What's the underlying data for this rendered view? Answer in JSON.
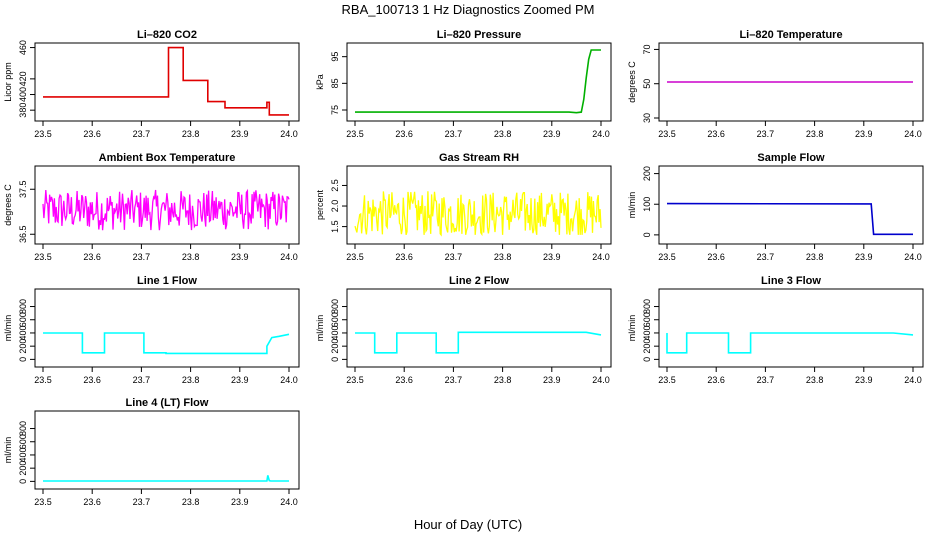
{
  "title": "RBA_100713  1 Hz Diagnostics Zoomed PM",
  "xlabel": "Hour of Day (UTC)",
  "chart_data": [
    {
      "type": "line",
      "title": "Li–820 CO2",
      "ylabel": "Licor ppm",
      "color": "#e00000",
      "xlim": [
        23.5,
        24.0
      ],
      "xticks": [
        "23.5",
        "23.6",
        "23.7",
        "23.8",
        "23.9",
        "24.0"
      ],
      "ylim": [
        370,
        462
      ],
      "yticks": [
        "380",
        "400",
        "420",
        "460"
      ],
      "ytickvals": [
        380,
        400,
        420,
        460
      ],
      "series": [
        {
          "x": [
            23.5,
            23.755,
            23.755,
            23.785,
            23.785,
            23.835,
            23.835,
            23.87,
            23.87,
            23.955,
            23.955,
            23.96,
            23.96,
            24.0
          ],
          "values": [
            397,
            397,
            460,
            460,
            418,
            418,
            391,
            391,
            383,
            383,
            390,
            390,
            374,
            374
          ]
        }
      ]
    },
    {
      "type": "line",
      "title": "Li–820 Pressure",
      "ylabel": "kPa",
      "color": "#00b000",
      "xlim": [
        23.5,
        24.0
      ],
      "xticks": [
        "23.5",
        "23.6",
        "23.7",
        "23.8",
        "23.9",
        "24.0"
      ],
      "ylim": [
        72,
        99
      ],
      "yticks": [
        "75",
        "85",
        "95"
      ],
      "ytickvals": [
        75,
        85,
        95
      ],
      "series": [
        {
          "x": [
            23.5,
            23.935,
            23.95,
            23.96,
            23.965,
            23.97,
            23.975,
            23.98,
            24.0
          ],
          "values": [
            74.2,
            74.2,
            74.0,
            74.2,
            79,
            87,
            94,
            97.5,
            97.5
          ]
        }
      ]
    },
    {
      "type": "line",
      "title": "Li–820 Temperature",
      "ylabel": "degrees C",
      "color": "#cc00cc",
      "xlim": [
        23.5,
        24.0
      ],
      "xticks": [
        "23.5",
        "23.6",
        "23.7",
        "23.8",
        "23.9",
        "24.0"
      ],
      "ylim": [
        30,
        72
      ],
      "yticks": [
        "30",
        "50",
        "70"
      ],
      "ytickvals": [
        30,
        50,
        70
      ],
      "series": [
        {
          "x": [
            23.5,
            24.0
          ],
          "values": [
            51,
            51
          ]
        }
      ]
    },
    {
      "type": "line",
      "title": "Ambient Box Temperature",
      "ylabel": "degrees C",
      "color": "#ff00ff",
      "xlim": [
        23.5,
        24.0
      ],
      "xticks": [
        "23.5",
        "23.6",
        "23.7",
        "23.8",
        "23.9",
        "24.0"
      ],
      "ylim": [
        36.35,
        37.95
      ],
      "yticks": [
        "36.5",
        "37.5"
      ],
      "ytickvals": [
        36.5,
        37.5
      ],
      "noise": {
        "base": 36.9,
        "amp": 0.45,
        "min": 36.45,
        "max": 37.9
      },
      "series": []
    },
    {
      "type": "line",
      "title": "Gas Stream RH",
      "ylabel": "percent",
      "color": "#ffff00",
      "xlim": [
        23.5,
        24.0
      ],
      "xticks": [
        "23.5",
        "23.6",
        "23.7",
        "23.8",
        "23.9",
        "24.0"
      ],
      "ylim": [
        1.15,
        2.9
      ],
      "yticks": [
        "1.5",
        "2.0",
        "2.5"
      ],
      "ytickvals": [
        1.5,
        2.0,
        2.5
      ],
      "noise": {
        "base": 1.65,
        "amp": 0.55,
        "min": 1.3,
        "max": 2.8
      },
      "series": []
    },
    {
      "type": "line",
      "title": "Sample Flow",
      "ylabel": "ml/min",
      "color": "#0000cc",
      "xlim": [
        23.5,
        24.0
      ],
      "xticks": [
        "23.5",
        "23.6",
        "23.7",
        "23.8",
        "23.9",
        "24.0"
      ],
      "ylim": [
        -20,
        215
      ],
      "yticks": [
        "0",
        "100",
        "200"
      ],
      "ytickvals": [
        0,
        100,
        200
      ],
      "series": [
        {
          "x": [
            23.5,
            23.915,
            23.915,
            23.92,
            24.0
          ],
          "values": [
            102,
            101,
            101,
            2,
            2
          ]
        }
      ]
    },
    {
      "type": "line",
      "title": "Line 1 Flow",
      "ylabel": "ml/min",
      "color": "#00ffff",
      "xlim": [
        23.5,
        24.0
      ],
      "xticks": [
        "23.5",
        "23.6",
        "23.7",
        "23.8",
        "23.9",
        "24.0"
      ],
      "ylim": [
        -70,
        1020
      ],
      "yticks": [
        "0",
        "200",
        "400",
        "600",
        "800"
      ],
      "ytickvals": [
        0,
        200,
        400,
        600,
        800
      ],
      "series": [
        {
          "x": [
            23.5,
            23.58,
            23.58,
            23.625,
            23.625,
            23.705,
            23.705,
            23.75,
            23.75,
            23.955,
            23.955,
            23.965,
            23.98,
            24.0
          ],
          "values": [
            400,
            400,
            100,
            100,
            400,
            400,
            100,
            100,
            90,
            90,
            200,
            330,
            350,
            380
          ]
        }
      ]
    },
    {
      "type": "line",
      "title": "Line 2 Flow",
      "ylabel": "ml/min",
      "color": "#00ffff",
      "xlim": [
        23.5,
        24.0
      ],
      "xticks": [
        "23.5",
        "23.6",
        "23.7",
        "23.8",
        "23.9",
        "24.0"
      ],
      "ylim": [
        -70,
        1020
      ],
      "yticks": [
        "0",
        "200",
        "400",
        "600",
        "800"
      ],
      "ytickvals": [
        0,
        200,
        400,
        600,
        800
      ],
      "series": [
        {
          "x": [
            23.5,
            23.54,
            23.54,
            23.585,
            23.585,
            23.665,
            23.665,
            23.71,
            23.71,
            23.97,
            24.0
          ],
          "values": [
            400,
            400,
            100,
            100,
            400,
            400,
            100,
            100,
            410,
            410,
            370
          ]
        }
      ]
    },
    {
      "type": "line",
      "title": "Line 3 Flow",
      "ylabel": "ml/min",
      "color": "#00ffff",
      "xlim": [
        23.5,
        24.0
      ],
      "xticks": [
        "23.5",
        "23.6",
        "23.7",
        "23.8",
        "23.9",
        "24.0"
      ],
      "ylim": [
        -70,
        1020
      ],
      "yticks": [
        "0",
        "200",
        "400",
        "600",
        "800"
      ],
      "ytickvals": [
        0,
        200,
        400,
        600,
        800
      ],
      "series": [
        {
          "x": [
            23.5,
            23.5,
            23.54,
            23.54,
            23.625,
            23.625,
            23.67,
            23.67,
            23.96,
            24.0
          ],
          "values": [
            400,
            100,
            100,
            400,
            400,
            100,
            100,
            400,
            400,
            370
          ]
        }
      ]
    },
    {
      "type": "line",
      "title": "Line 4 (LT) Flow",
      "ylabel": "ml/min",
      "color": "#00ffff",
      "xlim": [
        23.5,
        24.0
      ],
      "xticks": [
        "23.5",
        "23.6",
        "23.7",
        "23.8",
        "23.9",
        "24.0"
      ],
      "ylim": [
        -70,
        1020
      ],
      "yticks": [
        "0",
        "200",
        "400",
        "600",
        "800"
      ],
      "ytickvals": [
        0,
        200,
        400,
        600,
        800
      ],
      "series": [
        {
          "x": [
            23.5,
            23.955,
            23.957,
            23.96,
            23.963,
            24.0
          ],
          "values": [
            5,
            5,
            90,
            10,
            5,
            5
          ]
        }
      ]
    }
  ]
}
